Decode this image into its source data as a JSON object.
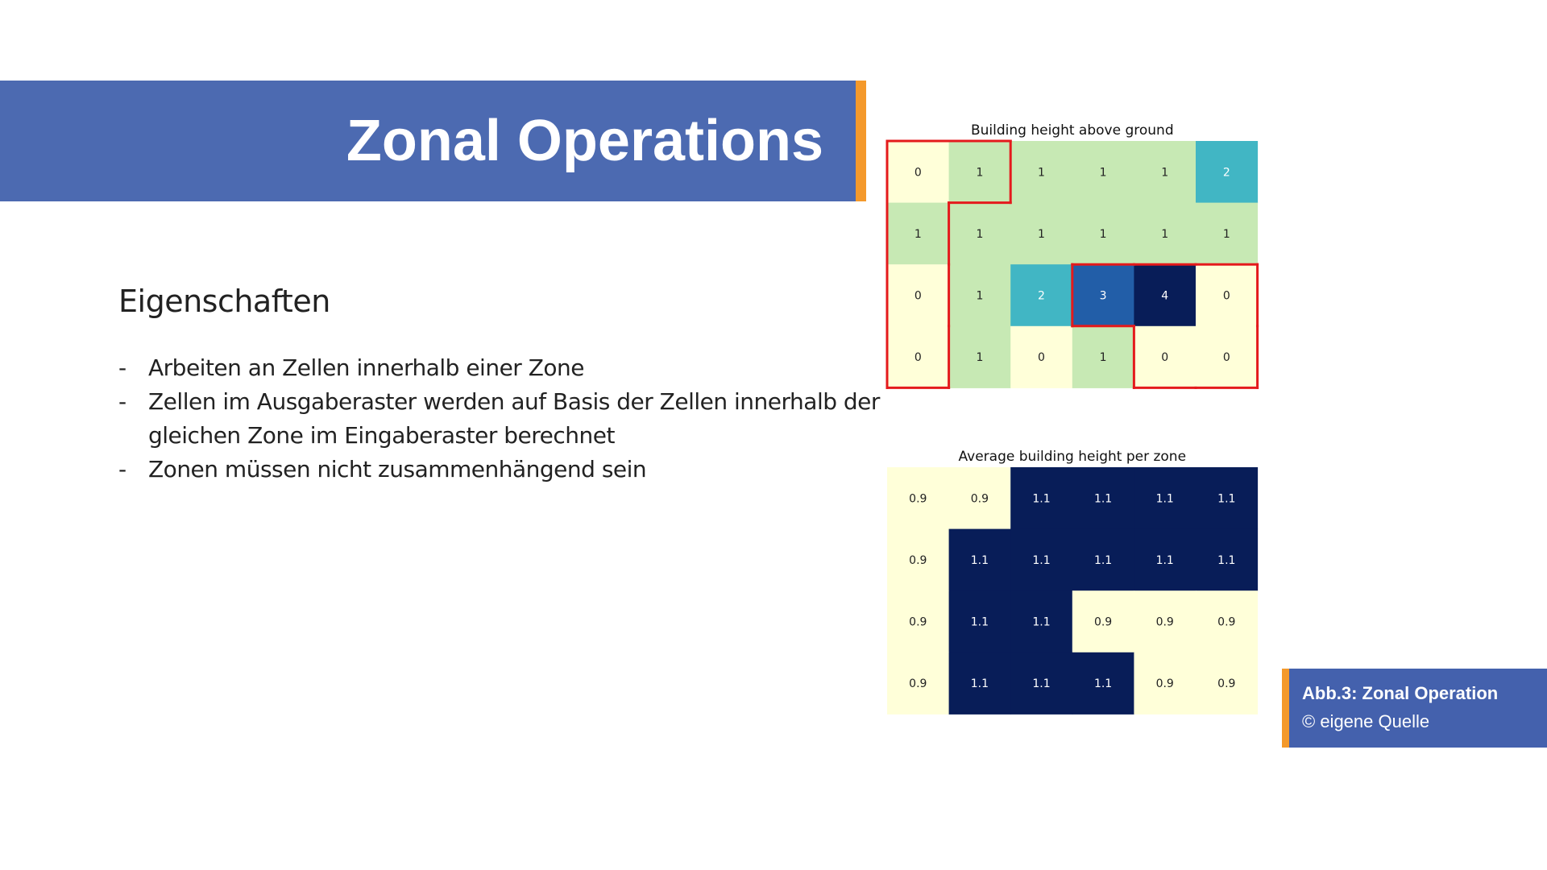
{
  "slide": {
    "title": "Zonal Operations",
    "subtitle": "Eigenschaften",
    "bullet_marker": "-",
    "bullets": [
      "Arbeiten an Zellen innerhalb einer Zone",
      "Zellen im Ausgaberaster werden auf Basis der Zellen innerhalb der gleichen Zone im Eingaberaster berechnet",
      "Zonen müssen nicht zusammenhängend sein"
    ],
    "caption": {
      "line1": "Abb.3: Zonal Operation",
      "line2": "© eigene Quelle"
    }
  },
  "colors": {
    "banner": "#4c6ab1",
    "accent": "#f4992b",
    "zone_outline": "#e41a1c"
  },
  "chart_data": [
    {
      "type": "heatmap",
      "title": "Building height above ground",
      "rows": 4,
      "cols": 6,
      "values": [
        [
          0,
          1,
          1,
          1,
          1,
          2
        ],
        [
          1,
          1,
          1,
          1,
          1,
          1
        ],
        [
          0,
          1,
          2,
          3,
          4,
          0
        ],
        [
          0,
          1,
          0,
          1,
          0,
          0
        ]
      ],
      "labels": [
        [
          "0",
          "1",
          "1",
          "1",
          "1",
          "2"
        ],
        [
          "1",
          "1",
          "1",
          "1",
          "1",
          "1"
        ],
        [
          "0",
          "1",
          "2",
          "3",
          "4",
          "0"
        ],
        [
          "0",
          "1",
          "0",
          "1",
          "0",
          "0"
        ]
      ],
      "colormap": "YlGnBu",
      "vmin": 0,
      "vmax": 4,
      "zone_a_cells": [
        [
          0,
          0
        ],
        [
          0,
          1
        ],
        [
          1,
          0
        ],
        [
          2,
          0
        ],
        [
          3,
          0
        ],
        [
          2,
          3
        ],
        [
          2,
          4
        ],
        [
          2,
          5
        ],
        [
          3,
          4
        ],
        [
          3,
          5
        ]
      ],
      "zone_outline_color": "#e41a1c"
    },
    {
      "type": "heatmap",
      "title": "Average building height per zone",
      "rows": 4,
      "cols": 6,
      "values": [
        [
          0.9,
          0.9,
          1.1,
          1.1,
          1.1,
          1.1
        ],
        [
          0.9,
          1.1,
          1.1,
          1.1,
          1.1,
          1.1
        ],
        [
          0.9,
          1.1,
          1.1,
          0.9,
          0.9,
          0.9
        ],
        [
          0.9,
          1.1,
          1.1,
          1.1,
          0.9,
          0.9
        ]
      ],
      "labels": [
        [
          "0.9",
          "0.9",
          "1.1",
          "1.1",
          "1.1",
          "1.1"
        ],
        [
          "0.9",
          "1.1",
          "1.1",
          "1.1",
          "1.1",
          "1.1"
        ],
        [
          "0.9",
          "1.1",
          "1.1",
          "0.9",
          "0.9",
          "0.9"
        ],
        [
          "0.9",
          "1.1",
          "1.1",
          "1.1",
          "0.9",
          "0.9"
        ]
      ],
      "colormap": "YlGnBu",
      "vmin": 0.9,
      "vmax": 1.1
    }
  ]
}
